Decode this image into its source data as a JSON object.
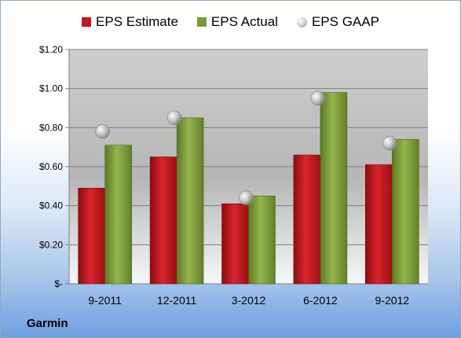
{
  "company": "Garmin",
  "colors": {
    "estimate": "#c8151d",
    "actual": "#7a9b35",
    "gaap": "#9a9a9a"
  },
  "chart_data": {
    "type": "bar",
    "categories": [
      "9-2011",
      "12-2011",
      "3-2012",
      "6-2012",
      "9-2012"
    ],
    "series": [
      {
        "name": "EPS Estimate",
        "values": [
          0.49,
          0.65,
          0.41,
          0.66,
          0.61
        ]
      },
      {
        "name": "EPS Actual",
        "values": [
          0.71,
          0.85,
          0.45,
          0.98,
          0.74
        ]
      },
      {
        "name": "EPS GAAP",
        "values": [
          0.78,
          0.85,
          0.44,
          0.95,
          0.72
        ]
      }
    ],
    "ylim": [
      0,
      1.2
    ],
    "yticks": [
      0,
      0.2,
      0.4,
      0.6,
      0.8,
      1.0,
      1.2
    ],
    "ytick_labels": [
      "$-",
      "$0.20",
      "$0.40",
      "$0.60",
      "$0.80",
      "$1.00",
      "$1.20"
    ],
    "grid": true,
    "legend_position": "top"
  }
}
